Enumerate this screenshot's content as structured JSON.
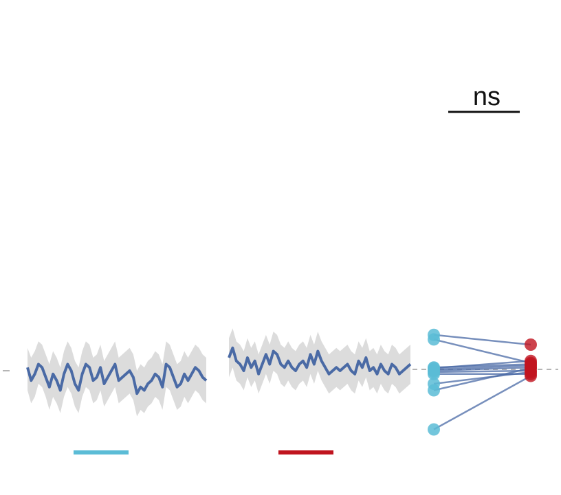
{
  "significance": {
    "label": "ns"
  },
  "colors": {
    "trace": "#4a6aa5",
    "band": "#dcdcdc",
    "condition_a": "#5bbcd6",
    "condition_b": "#c0141f",
    "paired_line": "#4a6aa5",
    "baseline": "#b5b5b5",
    "text": "#111111"
  },
  "chart_data": [
    {
      "type": "line",
      "panel": "trace-condition-a",
      "ylim": [
        -1,
        1
      ],
      "grid": false,
      "baseline": 0,
      "x": [
        1,
        2,
        3,
        4,
        5,
        6,
        7,
        8,
        9,
        10,
        11,
        12,
        13,
        14,
        15,
        16,
        17,
        18,
        19,
        20,
        21,
        22,
        23,
        24,
        25,
        26,
        27,
        28,
        29,
        30,
        31,
        32,
        33,
        34,
        35,
        36,
        37,
        38,
        39,
        40,
        41,
        42,
        43,
        44,
        45,
        46,
        47,
        48,
        49,
        50
      ],
      "series": [
        {
          "values": [
            0.05,
            -0.15,
            -0.05,
            0.1,
            0.05,
            -0.1,
            -0.25,
            -0.05,
            -0.15,
            -0.3,
            -0.05,
            0.1,
            0.0,
            -0.2,
            -0.3,
            -0.05,
            0.1,
            0.05,
            -0.15,
            -0.1,
            0.05,
            -0.2,
            -0.1,
            0.0,
            0.1,
            -0.15,
            -0.1,
            -0.05,
            0.0,
            -0.1,
            -0.35,
            -0.25,
            -0.3,
            -0.2,
            -0.15,
            -0.05,
            -0.1,
            -0.25,
            0.1,
            0.05,
            -0.1,
            -0.25,
            -0.2,
            -0.05,
            -0.15,
            -0.05,
            0.05,
            0.0,
            -0.1,
            -0.15
          ],
          "band_low": [
            -0.3,
            -0.5,
            -0.4,
            -0.2,
            -0.25,
            -0.4,
            -0.6,
            -0.4,
            -0.5,
            -0.65,
            -0.4,
            -0.25,
            -0.35,
            -0.55,
            -0.65,
            -0.4,
            -0.25,
            -0.3,
            -0.5,
            -0.45,
            -0.3,
            -0.55,
            -0.45,
            -0.35,
            -0.25,
            -0.5,
            -0.45,
            -0.4,
            -0.35,
            -0.45,
            -0.7,
            -0.6,
            -0.65,
            -0.55,
            -0.5,
            -0.4,
            -0.45,
            -0.6,
            -0.25,
            -0.3,
            -0.45,
            -0.6,
            -0.55,
            -0.4,
            -0.5,
            -0.4,
            -0.3,
            -0.35,
            -0.45,
            -0.5
          ],
          "band_high": [
            0.35,
            0.2,
            0.3,
            0.45,
            0.4,
            0.25,
            0.1,
            0.3,
            0.2,
            0.05,
            0.3,
            0.45,
            0.35,
            0.15,
            0.05,
            0.3,
            0.45,
            0.4,
            0.2,
            0.25,
            0.4,
            0.15,
            0.25,
            0.35,
            0.45,
            0.2,
            0.25,
            0.3,
            0.35,
            0.25,
            0.0,
            0.1,
            0.05,
            0.15,
            0.2,
            0.3,
            0.25,
            0.1,
            0.45,
            0.4,
            0.25,
            0.1,
            0.15,
            0.3,
            0.2,
            0.3,
            0.4,
            0.35,
            0.25,
            0.2
          ]
        }
      ]
    },
    {
      "type": "line",
      "panel": "trace-condition-b",
      "ylim": [
        -1,
        1
      ],
      "grid": false,
      "baseline": 0,
      "x": [
        1,
        2,
        3,
        4,
        5,
        6,
        7,
        8,
        9,
        10,
        11,
        12,
        13,
        14,
        15,
        16,
        17,
        18,
        19,
        20,
        21,
        22,
        23,
        24,
        25,
        26,
        27,
        28,
        29,
        30,
        31,
        32,
        33,
        34,
        35,
        36,
        37,
        38,
        39,
        40,
        41,
        42,
        43,
        44,
        45,
        46,
        47,
        48,
        49,
        50
      ],
      "series": [
        {
          "values": [
            0.2,
            0.35,
            0.15,
            0.1,
            0.0,
            0.2,
            0.05,
            0.15,
            -0.05,
            0.1,
            0.25,
            0.1,
            0.3,
            0.25,
            0.1,
            0.05,
            0.15,
            0.05,
            0.0,
            0.1,
            0.15,
            0.05,
            0.25,
            0.1,
            0.3,
            0.15,
            0.05,
            -0.05,
            0.0,
            0.05,
            0.0,
            0.05,
            0.1,
            0.0,
            -0.05,
            0.15,
            0.05,
            0.2,
            0.0,
            0.05,
            -0.05,
            0.1,
            0.0,
            -0.05,
            0.1,
            0.05,
            -0.05,
            0.0,
            0.05,
            0.1
          ],
          "band_low": [
            -0.1,
            0.05,
            -0.15,
            -0.2,
            -0.3,
            -0.1,
            -0.25,
            -0.15,
            -0.35,
            -0.2,
            -0.05,
            -0.2,
            0.0,
            -0.05,
            -0.2,
            -0.25,
            -0.15,
            -0.25,
            -0.3,
            -0.2,
            -0.15,
            -0.25,
            -0.05,
            -0.2,
            0.0,
            -0.15,
            -0.25,
            -0.35,
            -0.3,
            -0.25,
            -0.3,
            -0.25,
            -0.2,
            -0.3,
            -0.35,
            -0.15,
            -0.25,
            -0.1,
            -0.3,
            -0.25,
            -0.35,
            -0.2,
            -0.3,
            -0.35,
            -0.2,
            -0.25,
            -0.35,
            -0.3,
            -0.25,
            -0.2
          ],
          "band_high": [
            0.5,
            0.65,
            0.45,
            0.4,
            0.3,
            0.5,
            0.35,
            0.45,
            0.25,
            0.4,
            0.55,
            0.4,
            0.6,
            0.55,
            0.4,
            0.35,
            0.45,
            0.35,
            0.3,
            0.4,
            0.45,
            0.35,
            0.55,
            0.4,
            0.6,
            0.45,
            0.35,
            0.25,
            0.3,
            0.35,
            0.3,
            0.35,
            0.4,
            0.3,
            0.25,
            0.45,
            0.35,
            0.5,
            0.3,
            0.35,
            0.25,
            0.4,
            0.3,
            0.25,
            0.4,
            0.35,
            0.25,
            0.3,
            0.35,
            0.4
          ]
        }
      ]
    },
    {
      "type": "scatter",
      "panel": "paired-comparison",
      "ylim": [
        -1,
        1
      ],
      "grid": false,
      "baseline": 0,
      "pairs": [
        {
          "a": 0.55,
          "b": 0.4
        },
        {
          "a": 0.48,
          "b": 0.12
        },
        {
          "a": 0.05,
          "b": 0.1
        },
        {
          "a": 0.0,
          "b": 0.05
        },
        {
          "a": -0.02,
          "b": 0.0
        },
        {
          "a": -0.05,
          "b": -0.05
        },
        {
          "a": 0.02,
          "b": 0.08
        },
        {
          "a": -0.2,
          "b": -0.02
        },
        {
          "a": -0.3,
          "b": 0.04
        },
        {
          "a": -0.9,
          "b": -0.08
        },
        {
          "a": 0.04,
          "b": 0.15
        }
      ]
    }
  ]
}
